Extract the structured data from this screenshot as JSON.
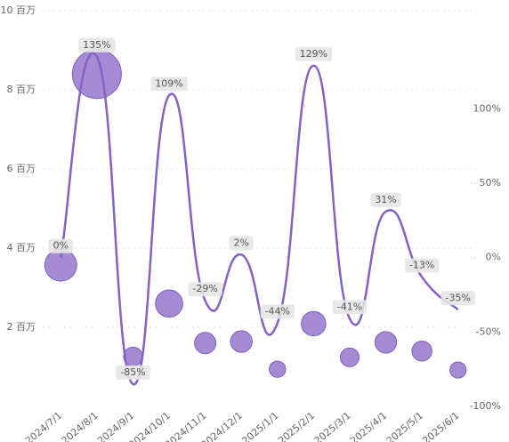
{
  "chart_data": {
    "type": "bubble-line",
    "categories": [
      "2024/7/1",
      "2024/8/1",
      "2024/9/1",
      "2024/10/1",
      "2024/11/1",
      "2024/12/1",
      "2025/1/1",
      "2025/2/1",
      "2025/3/1",
      "2025/4/1",
      "2025/5/1",
      "2025/6/1"
    ],
    "series": [
      {
        "type": "bubble",
        "color": "#9575cd",
        "values": [
          3.57,
          8.4,
          1.26,
          2.6,
          1.6,
          1.64,
          0.94,
          2.09,
          1.24,
          1.62,
          1.4,
          0.92
        ]
      },
      {
        "type": "line",
        "axis": "y2",
        "color": "#8461c4",
        "values": [
          0,
          135,
          -85,
          109,
          -29,
          2,
          -44,
          129,
          -41,
          31,
          -13,
          -35
        ],
        "value_labels": [
          "0%",
          "135%",
          "-85%",
          "109%",
          "-29%",
          "2%",
          "-44%",
          "129%",
          "-41%",
          "31%",
          "-13%",
          "-35%"
        ]
      }
    ],
    "ylim": [
      0,
      10
    ],
    "yticks": [
      {
        "value": 2,
        "label": "2 百万"
      },
      {
        "value": 4,
        "label": "4 百万"
      },
      {
        "value": 6,
        "label": "6 百万"
      },
      {
        "value": 8,
        "label": "8 百万"
      },
      {
        "value": 10,
        "label": "10 百万"
      }
    ],
    "y2lim": [
      -100,
      166
    ],
    "y2ticks": [
      {
        "value": -100,
        "label": "-100%"
      },
      {
        "value": -50,
        "label": "-50%"
      },
      {
        "value": 0,
        "label": "0%"
      },
      {
        "value": 50,
        "label": "50%"
      },
      {
        "value": 100,
        "label": "100%"
      }
    ],
    "grid": true
  }
}
